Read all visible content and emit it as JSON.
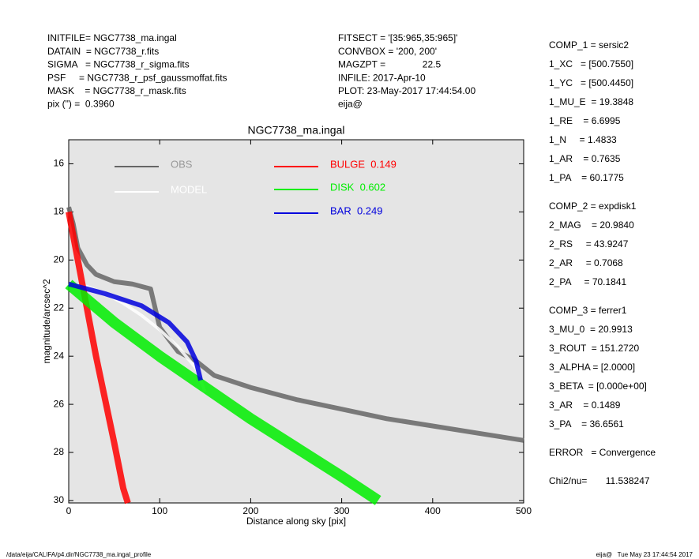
{
  "header": {
    "left": [
      "INITFILE= NGC7738_ma.ingal",
      "DATAIN  = NGC7738_r.fits",
      "SIGMA   = NGC7738_r_sigma.fits",
      "PSF     = NGC7738_r_psf_gaussmoffat.fits",
      "MASK    = NGC7738_r_mask.fits",
      "pix (\") =  0.3960"
    ],
    "middle": [
      "FITSECT = '[35:965,35:965]'",
      "CONVBOX = '200, 200'",
      "MAGZPT =              22.5",
      "INFILE: 2017-Apr-10",
      "PLOT: 23-May-2017 17:44:54.00",
      "eija@"
    ]
  },
  "parameters": [
    [
      "COMP_1 = sersic2",
      "1_XC   = [500.7550]",
      "1_YC   = [500.4450]",
      "1_MU_E  = 19.3848",
      "1_RE    = 6.6995",
      "1_N     = 1.4833",
      "1_AR    = 0.7635",
      "1_PA    = 60.1775"
    ],
    [
      "COMP_2 = expdisk1",
      "2_MAG    = 20.9840",
      "2_RS     = 43.9247",
      "2_AR     = 0.7068",
      "2_PA     = 70.1841"
    ],
    [
      "COMP_3 = ferrer1",
      "3_MU_0  = 20.9913",
      "3_ROUT  = 151.2720",
      "3_ALPHA = [2.0000]",
      "3_BETA  = [0.000e+00]",
      "3_AR    = 0.1489",
      "3_PA    = 36.6561"
    ],
    [
      "ERROR   = Convergence"
    ],
    [
      "Chi2/nu=       11.538247"
    ]
  ],
  "footer": {
    "left": "/data/eija/CALIFA/p4.dir/NGC7738_ma.ingal_profile",
    "right": "eija@   Tue May 23 17:44:54 2017"
  },
  "chart_data": {
    "type": "scatter",
    "title": "NGC7738_ma.ingal",
    "x_label": "Distance along sky [pix]",
    "y_label": "magnitude/arcsec^2",
    "xlim": [
      0,
      500
    ],
    "ylim": [
      30.1,
      15.0
    ],
    "xticks": [
      0,
      100,
      200,
      300,
      400,
      500
    ],
    "yticks": [
      16,
      18,
      20,
      22,
      24,
      26,
      28,
      30
    ],
    "series": [
      {
        "name": "OBS",
        "color": "#666666",
        "x": [
          0,
          5,
          10,
          20,
          30,
          50,
          70,
          90,
          100,
          120,
          140,
          160,
          200,
          250,
          300,
          350,
          400,
          450,
          500
        ],
        "values": [
          17.8,
          18.5,
          19.5,
          20.2,
          20.6,
          20.9,
          21.0,
          21.2,
          22.8,
          23.8,
          24.2,
          24.8,
          25.3,
          25.8,
          26.2,
          26.6,
          26.9,
          27.2,
          27.5
        ]
      },
      {
        "name": "MODEL",
        "color": "#ffffff",
        "x": [
          0,
          20,
          40,
          60,
          80,
          100,
          120,
          140,
          150
        ],
        "values": [
          21.0,
          21.1,
          21.4,
          21.8,
          22.3,
          22.9,
          23.6,
          24.5,
          25.5
        ]
      },
      {
        "name": "BULGE  0.149",
        "color": "#ff0000",
        "x": [
          0,
          10,
          20,
          30,
          40,
          50,
          60,
          65
        ],
        "values": [
          18.0,
          20.0,
          22.0,
          24.0,
          25.8,
          27.6,
          29.5,
          30.1
        ]
      },
      {
        "name": "DISK  0.602",
        "color": "#00ee00",
        "x": [
          0,
          50,
          100,
          150,
          200,
          250,
          300,
          340
        ],
        "values": [
          21.0,
          22.6,
          24.0,
          25.3,
          26.6,
          27.8,
          29.0,
          30.0
        ]
      },
      {
        "name": "BAR  0.249",
        "color": "#0000dd",
        "x": [
          0,
          40,
          80,
          110,
          130,
          140,
          145
        ],
        "values": [
          21.0,
          21.4,
          21.9,
          22.6,
          23.4,
          24.2,
          25.0
        ]
      }
    ]
  }
}
